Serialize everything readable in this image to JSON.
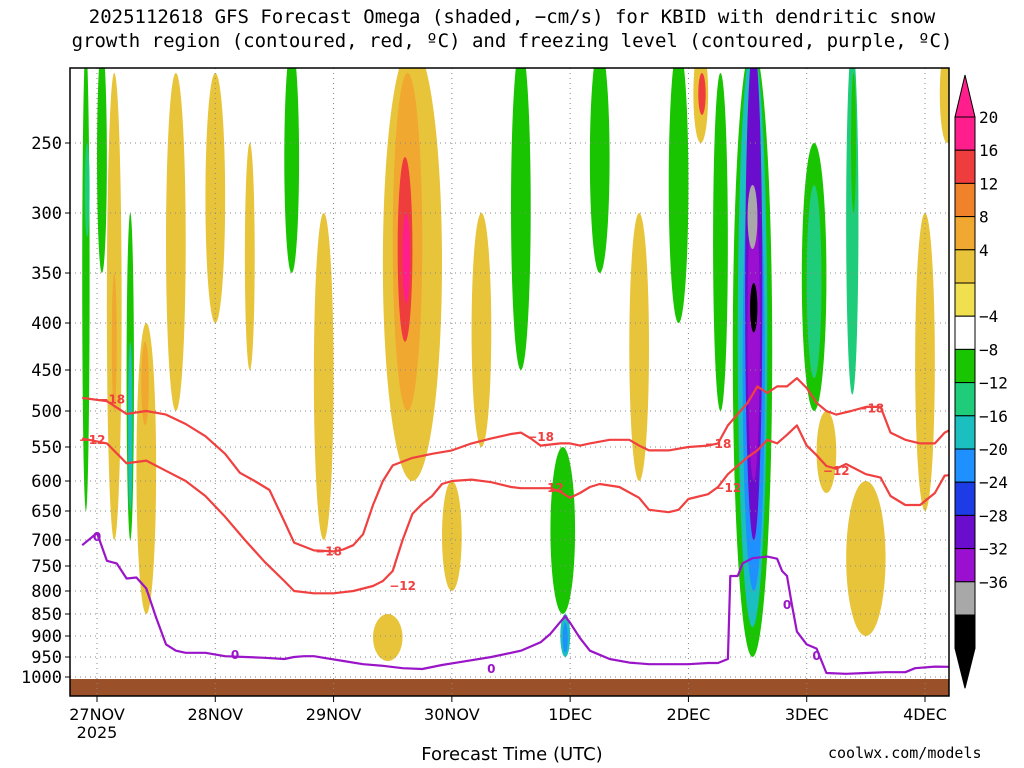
{
  "chart_data": {
    "type": "heatmap",
    "title_line1": "2025112618 GFS Forecast Omega (shaded, −cm/s) for KBID with dendritic snow",
    "title_line2": "growth region (contoured, red, ºC) and freezing level (contoured, purple, ºC)",
    "xlabel": "Forecast Time (UTC)",
    "credit": "coolwx.com/models",
    "y_ticks": [
      "250",
      "300",
      "350",
      "400",
      "450",
      "500",
      "550",
      "600",
      "650",
      "700",
      "750",
      "800",
      "850",
      "900",
      "950",
      "1000"
    ],
    "x_ticks": [
      {
        "label": "27NOV",
        "sub": "2025",
        "t": 0
      },
      {
        "label": "28NOV",
        "sub": "",
        "t": 24
      },
      {
        "label": "29NOV",
        "sub": "",
        "t": 48
      },
      {
        "label": "30NOV",
        "sub": "",
        "t": 72
      },
      {
        "label": "1DEC",
        "sub": "",
        "t": 96
      },
      {
        "label": "2DEC",
        "sub": "",
        "t": 120
      },
      {
        "label": "3DEC",
        "sub": "",
        "t": 144
      },
      {
        "label": "4DEC",
        "sub": "",
        "t": 168
      }
    ],
    "colorbar": {
      "labels": [
        "20",
        "16",
        "12",
        "8",
        "4",
        "−4",
        "−8",
        "−12",
        "−16",
        "−20",
        "−24",
        "−28",
        "−32",
        "−36"
      ],
      "colors": [
        "#ff1e8c",
        "#ef3d3d",
        "#f0822a",
        "#f0a830",
        "#e8c43a",
        "#f0e050",
        "#ffffff",
        "#19c400",
        "#1fcc7a",
        "#1bbfbf",
        "#1e90ff",
        "#1e3ce6",
        "#6a0dcc",
        "#9b10d0",
        "#a8a8a8",
        "#000000"
      ],
      "arrow_top_color": "#ff1e8c",
      "arrow_bottom_color": "#000000"
    },
    "contours": [
      {
        "name": "minus18",
        "label": "−18",
        "color": "#f04040",
        "points": [
          [
            -3,
            484
          ],
          [
            2,
            488
          ],
          [
            6,
            504
          ],
          [
            10,
            500
          ],
          [
            14,
            505
          ],
          [
            18,
            518
          ],
          [
            22,
            535
          ],
          [
            26,
            560
          ],
          [
            29,
            588
          ],
          [
            32,
            600
          ],
          [
            35,
            615
          ],
          [
            38,
            668
          ],
          [
            40,
            705
          ],
          [
            44,
            720
          ],
          [
            48,
            722
          ],
          [
            50,
            718
          ],
          [
            52,
            710
          ],
          [
            54,
            690
          ],
          [
            56,
            640
          ],
          [
            58,
            600
          ],
          [
            60,
            577
          ],
          [
            64,
            566
          ],
          [
            68,
            560
          ],
          [
            72,
            555
          ],
          [
            76,
            545
          ],
          [
            80,
            538
          ],
          [
            84,
            532
          ],
          [
            86,
            530
          ],
          [
            88,
            538
          ],
          [
            90,
            548
          ],
          [
            94,
            545
          ],
          [
            96,
            545
          ],
          [
            98,
            548
          ],
          [
            100,
            545
          ],
          [
            104,
            540
          ],
          [
            108,
            540
          ],
          [
            110,
            548
          ],
          [
            112,
            555
          ],
          [
            116,
            555
          ],
          [
            120,
            550
          ],
          [
            124,
            548
          ],
          [
            126,
            545
          ],
          [
            128,
            520
          ],
          [
            132,
            490
          ],
          [
            134,
            470
          ],
          [
            136,
            478
          ],
          [
            138,
            470
          ],
          [
            140,
            470
          ],
          [
            142,
            460
          ],
          [
            144,
            472
          ],
          [
            146,
            490
          ],
          [
            148,
            500
          ],
          [
            150,
            505
          ],
          [
            153,
            500
          ],
          [
            156,
            495
          ],
          [
            159,
            495
          ],
          [
            161,
            530
          ],
          [
            164,
            540
          ],
          [
            167,
            545
          ],
          [
            170,
            545
          ],
          [
            172,
            530
          ],
          [
            175,
            520
          ]
        ]
      },
      {
        "name": "minus12",
        "label": "−12",
        "color": "#f04040",
        "points": [
          [
            -3,
            538
          ],
          [
            2,
            545
          ],
          [
            6,
            574
          ],
          [
            10,
            570
          ],
          [
            14,
            585
          ],
          [
            18,
            600
          ],
          [
            22,
            625
          ],
          [
            26,
            660
          ],
          [
            30,
            700
          ],
          [
            34,
            742
          ],
          [
            38,
            780
          ],
          [
            40,
            800
          ],
          [
            44,
            805
          ],
          [
            48,
            805
          ],
          [
            52,
            800
          ],
          [
            56,
            790
          ],
          [
            58,
            780
          ],
          [
            60,
            760
          ],
          [
            62,
            700
          ],
          [
            64,
            655
          ],
          [
            66,
            638
          ],
          [
            68,
            625
          ],
          [
            70,
            605
          ],
          [
            72,
            600
          ],
          [
            76,
            598
          ],
          [
            80,
            602
          ],
          [
            84,
            610
          ],
          [
            86,
            612
          ],
          [
            88,
            612
          ],
          [
            92,
            612
          ],
          [
            94,
            618
          ],
          [
            96,
            628
          ],
          [
            98,
            620
          ],
          [
            100,
            610
          ],
          [
            102,
            605
          ],
          [
            106,
            610
          ],
          [
            110,
            628
          ],
          [
            112,
            648
          ],
          [
            116,
            652
          ],
          [
            118,
            648
          ],
          [
            120,
            630
          ],
          [
            124,
            622
          ],
          [
            126,
            610
          ],
          [
            128,
            590
          ],
          [
            132,
            565
          ],
          [
            134,
            555
          ],
          [
            136,
            540
          ],
          [
            138,
            545
          ],
          [
            140,
            533
          ],
          [
            142,
            520
          ],
          [
            144,
            548
          ],
          [
            146,
            562
          ],
          [
            148,
            578
          ],
          [
            150,
            582
          ],
          [
            152,
            575
          ],
          [
            156,
            590
          ],
          [
            159,
            595
          ],
          [
            161,
            625
          ],
          [
            164,
            640
          ],
          [
            167,
            640
          ],
          [
            170,
            620
          ],
          [
            172,
            592
          ],
          [
            175,
            590
          ]
        ]
      },
      {
        "name": "zero",
        "label": "0",
        "color": "#9a14c8",
        "points": [
          [
            -3,
            710
          ],
          [
            0,
            688
          ],
          [
            2,
            740
          ],
          [
            4,
            745
          ],
          [
            6,
            775
          ],
          [
            8,
            773
          ],
          [
            10,
            795
          ],
          [
            12,
            858
          ],
          [
            14,
            920
          ],
          [
            16,
            935
          ],
          [
            18,
            940
          ],
          [
            22,
            940
          ],
          [
            26,
            948
          ],
          [
            30,
            950
          ],
          [
            34,
            952
          ],
          [
            38,
            955
          ],
          [
            40,
            950
          ],
          [
            42,
            948
          ],
          [
            44,
            948
          ],
          [
            46,
            952
          ],
          [
            50,
            960
          ],
          [
            54,
            968
          ],
          [
            58,
            972
          ],
          [
            62,
            978
          ],
          [
            66,
            980
          ],
          [
            68,
            975
          ],
          [
            70,
            970
          ],
          [
            74,
            962
          ],
          [
            80,
            950
          ],
          [
            86,
            935
          ],
          [
            90,
            915
          ],
          [
            92,
            895
          ],
          [
            94,
            868
          ],
          [
            95,
            855
          ],
          [
            96,
            870
          ],
          [
            98,
            905
          ],
          [
            100,
            935
          ],
          [
            104,
            955
          ],
          [
            108,
            964
          ],
          [
            112,
            968
          ],
          [
            116,
            968
          ],
          [
            120,
            968
          ],
          [
            124,
            965
          ],
          [
            126,
            965
          ],
          [
            128,
            955
          ],
          [
            128.5,
            770
          ],
          [
            130,
            770
          ],
          [
            131,
            745
          ],
          [
            133,
            735
          ],
          [
            136,
            732
          ],
          [
            138,
            736
          ],
          [
            139,
            760
          ],
          [
            140,
            770
          ],
          [
            141,
            830
          ],
          [
            142,
            890
          ],
          [
            144,
            920
          ],
          [
            146,
            930
          ],
          [
            148,
            990
          ],
          [
            152,
            992
          ],
          [
            156,
            990
          ],
          [
            160,
            988
          ],
          [
            164,
            988
          ],
          [
            166,
            978
          ],
          [
            170,
            974
          ],
          [
            175,
            975
          ]
        ]
      }
    ],
    "contour_labels": [
      {
        "text": "−18",
        "t": 3,
        "p": 486
      },
      {
        "text": "−12",
        "t": -1,
        "p": 540
      },
      {
        "text": "0",
        "t": 0,
        "p": 695
      },
      {
        "text": "−18",
        "t": 47,
        "p": 722
      },
      {
        "text": "−12",
        "t": 62,
        "p": 790
      },
      {
        "text": "−18",
        "t": 90,
        "p": 536
      },
      {
        "text": "−12",
        "t": 92,
        "p": 612
      },
      {
        "text": "−18",
        "t": 126,
        "p": 546
      },
      {
        "text": "−12",
        "t": 128,
        "p": 612
      },
      {
        "text": "−18",
        "t": 157,
        "p": 497
      },
      {
        "text": "−12",
        "t": 150,
        "p": 585
      },
      {
        "text": "0",
        "t": 28,
        "p": 945
      },
      {
        "text": "0",
        "t": 80,
        "p": 980
      },
      {
        "text": "0",
        "t": 140,
        "p": 830
      },
      {
        "text": "0",
        "t": 146,
        "p": 948
      }
    ],
    "shaded_blobs": [
      {
        "t0": -3,
        "t1": -1.5,
        "p0": 180,
        "p1": 650,
        "color": "#19c400"
      },
      {
        "t0": -2.5,
        "t1": -1.5,
        "p0": 250,
        "p1": 320,
        "color": "#1fcc7a"
      },
      {
        "t0": 0,
        "t1": 2,
        "p0": 180,
        "p1": 350,
        "color": "#19c400"
      },
      {
        "t0": 2,
        "t1": 5,
        "p0": 200,
        "p1": 700,
        "color": "#e8c43a"
      },
      {
        "t0": 3,
        "t1": 4,
        "p0": 350,
        "p1": 500,
        "color": "#f0a830"
      },
      {
        "t0": 6,
        "t1": 7.5,
        "p0": 300,
        "p1": 700,
        "color": "#19c400"
      },
      {
        "t0": 6.3,
        "t1": 7.2,
        "p0": 420,
        "p1": 650,
        "color": "#1bbfbf"
      },
      {
        "t0": 8,
        "t1": 12,
        "p0": 400,
        "p1": 850,
        "color": "#e8c43a"
      },
      {
        "t0": 9,
        "t1": 10.5,
        "p0": 420,
        "p1": 520,
        "color": "#f0a830"
      },
      {
        "t0": 14,
        "t1": 18,
        "p0": 200,
        "p1": 500,
        "color": "#e8c43a"
      },
      {
        "t0": 22,
        "t1": 26,
        "p0": 200,
        "p1": 400,
        "color": "#e8c43a"
      },
      {
        "t0": 30,
        "t1": 32,
        "p0": 250,
        "p1": 450,
        "color": "#e8c43a"
      },
      {
        "t0": 38,
        "t1": 41,
        "p0": 180,
        "p1": 350,
        "color": "#19c400"
      },
      {
        "t0": 44,
        "t1": 48,
        "p0": 300,
        "p1": 700,
        "color": "#e8c43a"
      },
      {
        "t0": 58,
        "t1": 70,
        "p0": 180,
        "p1": 600,
        "color": "#e8c43a"
      },
      {
        "t0": 60,
        "t1": 66,
        "p0": 200,
        "p1": 500,
        "color": "#f0a830"
      },
      {
        "t0": 61,
        "t1": 64,
        "p0": 260,
        "p1": 420,
        "color": "#ef3d3d"
      },
      {
        "t0": 62,
        "t1": 63.5,
        "p0": 300,
        "p1": 380,
        "color": "#ff1e8c"
      },
      {
        "t0": 70,
        "t1": 74,
        "p0": 600,
        "p1": 800,
        "color": "#e8c43a"
      },
      {
        "t0": 56,
        "t1": 62,
        "p0": 850,
        "p1": 960,
        "color": "#e8c43a"
      },
      {
        "t0": 76,
        "t1": 80,
        "p0": 300,
        "p1": 550,
        "color": "#e8c43a"
      },
      {
        "t0": 84,
        "t1": 88,
        "p0": 180,
        "p1": 450,
        "color": "#19c400"
      },
      {
        "t0": 92,
        "t1": 97,
        "p0": 550,
        "p1": 850,
        "color": "#19c400"
      },
      {
        "t0": 94,
        "t1": 96,
        "p0": 850,
        "p1": 950,
        "color": "#1bbfbf"
      },
      {
        "t0": 94.5,
        "t1": 95.5,
        "p0": 870,
        "p1": 940,
        "color": "#1e90ff"
      },
      {
        "t0": 100,
        "t1": 104,
        "p0": 180,
        "p1": 350,
        "color": "#19c400"
      },
      {
        "t0": 108,
        "t1": 112,
        "p0": 300,
        "p1": 600,
        "color": "#e8c43a"
      },
      {
        "t0": 116,
        "t1": 120,
        "p0": 180,
        "p1": 400,
        "color": "#19c400"
      },
      {
        "t0": 121,
        "t1": 124,
        "p0": 180,
        "p1": 250,
        "color": "#e8c43a"
      },
      {
        "t0": 122,
        "t1": 123.5,
        "p0": 200,
        "p1": 230,
        "color": "#ef3d3d"
      },
      {
        "t0": 125,
        "t1": 128,
        "p0": 200,
        "p1": 500,
        "color": "#19c400"
      },
      {
        "t0": 129,
        "t1": 137,
        "p0": 180,
        "p1": 950,
        "color": "#19c400"
      },
      {
        "t0": 130,
        "t1": 136,
        "p0": 180,
        "p1": 880,
        "color": "#1bbfbf"
      },
      {
        "t0": 131,
        "t1": 135.5,
        "p0": 250,
        "p1": 800,
        "color": "#1e90ff"
      },
      {
        "t0": 131.5,
        "t1": 135,
        "p0": 180,
        "p1": 700,
        "color": "#6a0dcc"
      },
      {
        "t0": 132,
        "t1": 134.5,
        "p0": 280,
        "p1": 600,
        "color": "#9b10d0"
      },
      {
        "t0": 132,
        "t1": 134,
        "p0": 280,
        "p1": 330,
        "color": "#a8a8a8"
      },
      {
        "t0": 132.5,
        "t1": 134,
        "p0": 360,
        "p1": 410,
        "color": "#000000"
      },
      {
        "t0": 138,
        "t1": 141,
        "p0": 180,
        "p1": 500,
        "color": "#ffffff"
      },
      {
        "t0": 143,
        "t1": 148,
        "p0": 250,
        "p1": 500,
        "color": "#19c400"
      },
      {
        "t0": 144,
        "t1": 147,
        "p0": 280,
        "p1": 460,
        "color": "#1fcc7a"
      },
      {
        "t0": 152,
        "t1": 154.5,
        "p0": 180,
        "p1": 480,
        "color": "#1fcc7a"
      },
      {
        "t0": 153,
        "t1": 154,
        "p0": 200,
        "p1": 300,
        "color": "#19c400"
      },
      {
        "t0": 166,
        "t1": 170,
        "p0": 300,
        "p1": 650,
        "color": "#e8c43a"
      },
      {
        "t0": 171,
        "t1": 174,
        "p0": 180,
        "p1": 250,
        "color": "#e8c43a"
      },
      {
        "t0": 146,
        "t1": 150,
        "p0": 500,
        "p1": 620,
        "color": "#e8c43a"
      },
      {
        "t0": 152,
        "t1": 160,
        "p0": 600,
        "p1": 900,
        "color": "#e8c43a"
      }
    ]
  }
}
